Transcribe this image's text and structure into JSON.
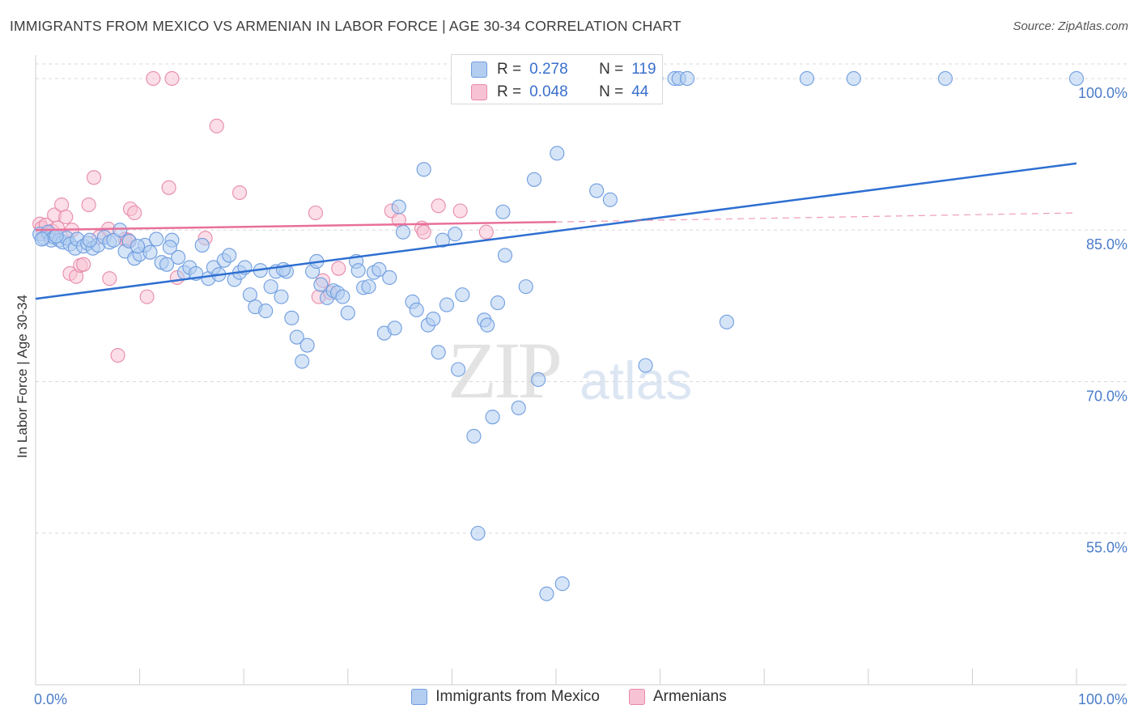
{
  "title": "IMMIGRANTS FROM MEXICO VS ARMENIAN IN LABOR FORCE | AGE 30-34 CORRELATION CHART",
  "source": "Source: ZipAtlas.com",
  "watermark": {
    "zip": "ZIP",
    "atlas": "atlas"
  },
  "stats": {
    "r_label": "R =",
    "n_label": "N =",
    "rows": [
      {
        "r": "0.278",
        "n": "119"
      },
      {
        "r": "0.048",
        "n": "44"
      }
    ]
  },
  "legend": {
    "series1": "Immigrants from Mexico",
    "series2": "Armenians"
  },
  "colors": {
    "blue_fill": "#b3cdf0",
    "blue_stroke": "#6f9de0",
    "blue_line": "#2e6fd1",
    "pink_fill": "#f7c2d4",
    "pink_stroke": "#e88aaa",
    "pink_line": "#e8709a",
    "grid": "#d9d9d9"
  },
  "chart_data": {
    "type": "scatter",
    "title": "IMMIGRANTS FROM MEXICO VS ARMENIAN IN LABOR FORCE | AGE 30-34 CORRELATION CHART",
    "xlabel": "",
    "ylabel": "In Labor Force | Age 30-34",
    "xlim": [
      0,
      100
    ],
    "ylim": [
      40,
      102
    ],
    "x_tick_labels": [
      "0.0%",
      "100.0%"
    ],
    "y_ticks": [
      55,
      70,
      85,
      100
    ],
    "y_tick_labels": [
      "55.0%",
      "70.0%",
      "85.0%",
      "100.0%"
    ],
    "grid": true,
    "series": [
      {
        "name": "Immigrants from Mexico",
        "points": [
          [
            0.4,
            84.6
          ],
          [
            0.8,
            84.2
          ],
          [
            1.2,
            84.8
          ],
          [
            1.5,
            84
          ],
          [
            1.8,
            84.3
          ],
          [
            2.3,
            84
          ],
          [
            2.6,
            83.8
          ],
          [
            3.0,
            84.2
          ],
          [
            3.3,
            83.6
          ],
          [
            3.8,
            83.2
          ],
          [
            4.0,
            84.1
          ],
          [
            4.6,
            83.4
          ],
          [
            5.0,
            83.7
          ],
          [
            5.5,
            83.2
          ],
          [
            6.0,
            83.5
          ],
          [
            6.6,
            84.3
          ],
          [
            7.1,
            83.8
          ],
          [
            7.5,
            84.0
          ],
          [
            8.1,
            85.0
          ],
          [
            8.6,
            82.9
          ],
          [
            9.0,
            83.9
          ],
          [
            9.5,
            82.2
          ],
          [
            10.0,
            82.6
          ],
          [
            10.5,
            83.5
          ],
          [
            11.0,
            82.8
          ],
          [
            11.6,
            84.1
          ],
          [
            12.1,
            81.8
          ],
          [
            12.6,
            81.6
          ],
          [
            13.1,
            84.0
          ],
          [
            13.7,
            82.3
          ],
          [
            14.3,
            80.8
          ],
          [
            14.8,
            81.3
          ],
          [
            15.4,
            80.7
          ],
          [
            16.0,
            83.5
          ],
          [
            16.6,
            80.2
          ],
          [
            17.1,
            81.3
          ],
          [
            17.6,
            80.6
          ],
          [
            18.1,
            82.0
          ],
          [
            18.6,
            82.5
          ],
          [
            19.1,
            80.1
          ],
          [
            19.6,
            80.8
          ],
          [
            20.1,
            81.3
          ],
          [
            20.6,
            78.6
          ],
          [
            21.1,
            77.4
          ],
          [
            21.6,
            81.0
          ],
          [
            22.1,
            77.0
          ],
          [
            22.6,
            79.4
          ],
          [
            23.1,
            80.9
          ],
          [
            23.6,
            78.4
          ],
          [
            24.1,
            80.9
          ],
          [
            24.6,
            76.3
          ],
          [
            25.1,
            74.4
          ],
          [
            25.6,
            72.0
          ],
          [
            26.1,
            73.6
          ],
          [
            26.6,
            80.9
          ],
          [
            27.0,
            81.9
          ],
          [
            27.4,
            79.6
          ],
          [
            28.0,
            78.3
          ],
          [
            28.6,
            79.0
          ],
          [
            29.0,
            78.8
          ],
          [
            29.5,
            78.4
          ],
          [
            30.0,
            76.8
          ],
          [
            30.8,
            81.9
          ],
          [
            31.0,
            81.0
          ],
          [
            31.5,
            79.3
          ],
          [
            32.0,
            79.4
          ],
          [
            32.5,
            80.8
          ],
          [
            33.0,
            81.1
          ],
          [
            33.5,
            74.8
          ],
          [
            34.0,
            80.3
          ],
          [
            34.5,
            75.3
          ],
          [
            34.9,
            87.3
          ],
          [
            35.3,
            84.8
          ],
          [
            36.2,
            77.9
          ],
          [
            36.6,
            77.1
          ],
          [
            37.3,
            91.0
          ],
          [
            37.7,
            75.6
          ],
          [
            38.2,
            76.2
          ],
          [
            38.7,
            72.9
          ],
          [
            39.1,
            84.0
          ],
          [
            39.5,
            77.6
          ],
          [
            40.3,
            84.6
          ],
          [
            40.6,
            71.2
          ],
          [
            41.0,
            78.6
          ],
          [
            42.1,
            64.6
          ],
          [
            42.5,
            55.0
          ],
          [
            43.1,
            76.1
          ],
          [
            43.4,
            75.6
          ],
          [
            43.9,
            66.5
          ],
          [
            44.4,
            77.8
          ],
          [
            44.9,
            86.8
          ],
          [
            45.1,
            82.5
          ],
          [
            46.4,
            67.4
          ],
          [
            47.1,
            79.4
          ],
          [
            47.9,
            90.0
          ],
          [
            48.3,
            70.2
          ],
          [
            49.1,
            49.0
          ],
          [
            50.1,
            92.6
          ],
          [
            50.6,
            50.0
          ],
          [
            51.3,
            100.0
          ],
          [
            53.9,
            88.9
          ],
          [
            55.2,
            88.0
          ],
          [
            56.1,
            100.0
          ],
          [
            58.6,
            71.6
          ],
          [
            59.6,
            100.0
          ],
          [
            61.4,
            100.0
          ],
          [
            61.8,
            100.0
          ],
          [
            62.6,
            100.0
          ],
          [
            66.4,
            75.9
          ],
          [
            74.1,
            100.0
          ],
          [
            78.6,
            100.0
          ],
          [
            87.4,
            100.0
          ],
          [
            100.0,
            100.0
          ],
          [
            0.6,
            84.1
          ],
          [
            2.0,
            84.4
          ],
          [
            5.2,
            84.0
          ],
          [
            9.8,
            83.4
          ],
          [
            12.9,
            83.3
          ],
          [
            23.8,
            81.1
          ]
        ]
      },
      {
        "name": "Armenians",
        "points": [
          [
            0.4,
            85.6
          ],
          [
            0.6,
            85.2
          ],
          [
            1.0,
            85.5
          ],
          [
            1.2,
            84.6
          ],
          [
            1.6,
            84.9
          ],
          [
            1.8,
            86.5
          ],
          [
            2.1,
            85.2
          ],
          [
            2.5,
            87.5
          ],
          [
            2.9,
            86.3
          ],
          [
            3.3,
            80.7
          ],
          [
            3.5,
            85.0
          ],
          [
            3.9,
            80.4
          ],
          [
            4.3,
            81.5
          ],
          [
            4.6,
            81.6
          ],
          [
            5.1,
            87.5
          ],
          [
            5.6,
            90.2
          ],
          [
            6.1,
            84.3
          ],
          [
            7.0,
            85.1
          ],
          [
            7.1,
            80.2
          ],
          [
            7.9,
            72.6
          ],
          [
            8.6,
            84.1
          ],
          [
            8.9,
            84.0
          ],
          [
            9.1,
            87.1
          ],
          [
            9.5,
            86.7
          ],
          [
            10.7,
            78.4
          ],
          [
            11.3,
            100.0
          ],
          [
            12.8,
            89.2
          ],
          [
            13.1,
            100.0
          ],
          [
            13.6,
            80.3
          ],
          [
            16.3,
            84.2
          ],
          [
            17.4,
            95.3
          ],
          [
            19.6,
            88.7
          ],
          [
            26.9,
            86.7
          ],
          [
            27.2,
            78.4
          ],
          [
            27.6,
            80.0
          ],
          [
            28.3,
            78.8
          ],
          [
            29.1,
            81.2
          ],
          [
            34.2,
            86.9
          ],
          [
            34.9,
            86.0
          ],
          [
            37.1,
            85.2
          ],
          [
            37.3,
            84.8
          ],
          [
            38.7,
            87.4
          ],
          [
            40.8,
            86.9
          ],
          [
            43.3,
            84.8
          ]
        ]
      }
    ],
    "trendlines": [
      {
        "series": "Immigrants from Mexico",
        "x": [
          0,
          100
        ],
        "y": [
          78.2,
          91.6
        ]
      },
      {
        "series": "Armenians",
        "x": [
          0,
          50,
          100
        ],
        "y": [
          85.0,
          85.8,
          86.7
        ]
      }
    ]
  }
}
